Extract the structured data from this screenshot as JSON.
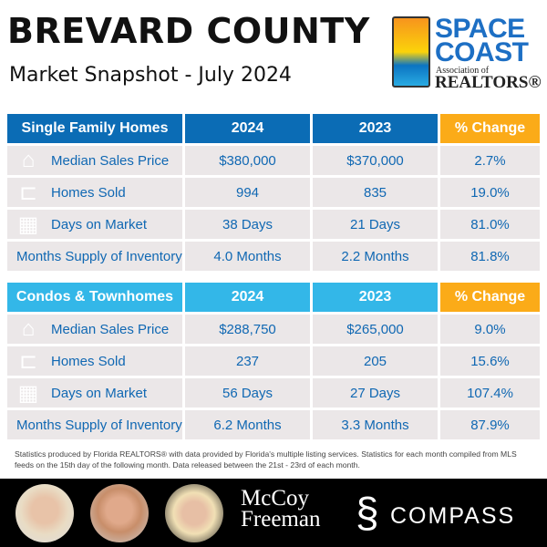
{
  "header": {
    "title": "BREVARD COUNTY",
    "subtitle": "Market Snapshot - July 2024"
  },
  "logo": {
    "line1": "SPACE",
    "line2": "COAST",
    "line3": "Association of",
    "line4": "REALTORS®"
  },
  "tables": [
    {
      "headers": [
        "Single Family Homes",
        "2024",
        "2023",
        "% Change"
      ],
      "rows": [
        {
          "icon": "house-icon",
          "label": "Median Sales Price",
          "v2024": "$380,000",
          "v2023": "$370,000",
          "change": "2.7%"
        },
        {
          "icon": "sold-sign-icon",
          "label": "Homes Sold",
          "v2024": "994",
          "v2023": "835",
          "change": "19.0%"
        },
        {
          "icon": "calendar-icon",
          "label": "Days on Market",
          "v2024": "38 Days",
          "v2023": "21 Days",
          "change": "81.0%"
        },
        {
          "icon": "",
          "label": "Months Supply of Inventory",
          "v2024": "4.0 Months",
          "v2023": "2.2 Months",
          "change": "81.8%"
        }
      ]
    },
    {
      "headers": [
        "Condos & Townhomes",
        "2024",
        "2023",
        "% Change"
      ],
      "rows": [
        {
          "icon": "house-icon",
          "label": "Median Sales Price",
          "v2024": "$288,750",
          "v2023": "$265,000",
          "change": "9.0%"
        },
        {
          "icon": "sold-sign-icon",
          "label": "Homes Sold",
          "v2024": "237",
          "v2023": "205",
          "change": "15.6%"
        },
        {
          "icon": "calendar-icon",
          "label": "Days on Market",
          "v2024": "56 Days",
          "v2023": "27 Days",
          "change": "107.4%"
        },
        {
          "icon": "",
          "label": "Months Supply of Inventory",
          "v2024": "6.2 Months",
          "v2023": "3.3 Months",
          "change": "87.9%"
        }
      ]
    }
  ],
  "footnote": "Statistics produced by Florida REALTORS® with data provided by Florida's multiple listing services. Statistics for each month compiled from MLS feeds on the 15th day of the following month. Data released between the 21st - 23rd of each month.",
  "branding": {
    "team_line1": "McCoy",
    "team_line2": "Freeman",
    "brokerage": "COMPASS"
  }
}
